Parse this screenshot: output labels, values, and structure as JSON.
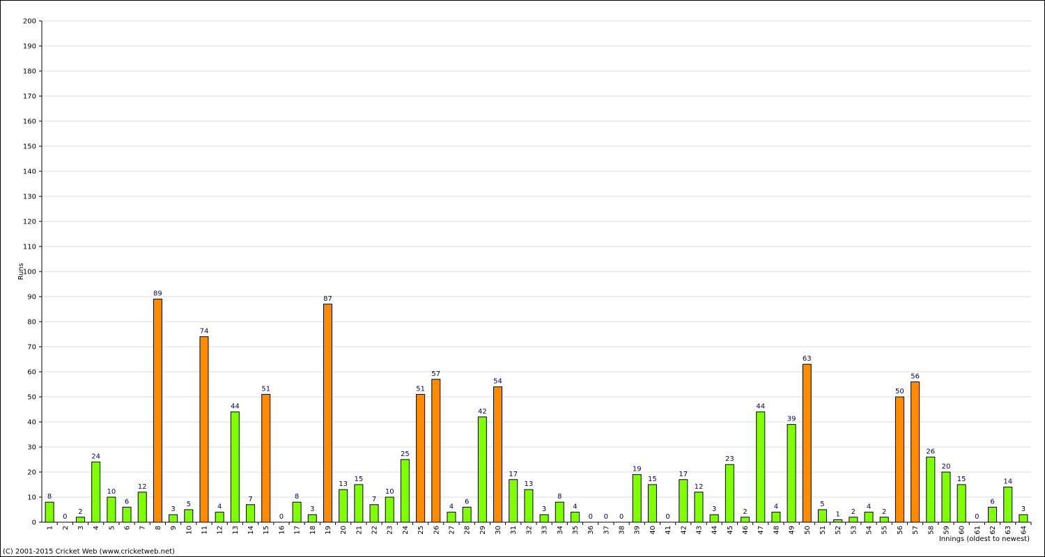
{
  "chart_data": {
    "type": "bar",
    "y_label": "Runs",
    "x_label": "Innings (oldest to newest)",
    "categories": [
      "1",
      "2",
      "3",
      "4",
      "5",
      "6",
      "7",
      "8",
      "9",
      "10",
      "11",
      "12",
      "13",
      "14",
      "15",
      "16",
      "17",
      "18",
      "19",
      "20",
      "21",
      "22",
      "23",
      "24",
      "25",
      "26",
      "27",
      "28",
      "29",
      "30",
      "31",
      "32",
      "33",
      "34",
      "35",
      "36",
      "37",
      "38",
      "39",
      "40",
      "41",
      "42",
      "43",
      "44",
      "45",
      "46",
      "47",
      "48",
      "49",
      "50",
      "51",
      "52",
      "53",
      "54",
      "55",
      "56",
      "57",
      "58",
      "59",
      "60",
      "61",
      "62",
      "63",
      "64"
    ],
    "values": [
      8,
      0,
      2,
      24,
      10,
      6,
      12,
      89,
      3,
      5,
      74,
      4,
      44,
      7,
      51,
      0,
      8,
      3,
      87,
      13,
      15,
      7,
      10,
      25,
      51,
      57,
      4,
      6,
      42,
      54,
      17,
      13,
      3,
      8,
      4,
      0,
      0,
      0,
      19,
      15,
      0,
      17,
      12,
      3,
      23,
      2,
      44,
      4,
      39,
      63,
      5,
      1,
      2,
      4,
      2,
      50,
      56,
      26,
      20,
      15,
      0,
      6,
      14,
      3
    ],
    "colors": [
      "#80ff00",
      "#80ff00",
      "#80ff00",
      "#80ff00",
      "#80ff00",
      "#80ff00",
      "#80ff00",
      "#ff8c00",
      "#80ff00",
      "#80ff00",
      "#ff8c00",
      "#80ff00",
      "#80ff00",
      "#80ff00",
      "#ff8c00",
      "#80ff00",
      "#80ff00",
      "#80ff00",
      "#ff8c00",
      "#80ff00",
      "#80ff00",
      "#80ff00",
      "#80ff00",
      "#80ff00",
      "#ff8c00",
      "#ff8c00",
      "#80ff00",
      "#80ff00",
      "#80ff00",
      "#ff8c00",
      "#80ff00",
      "#80ff00",
      "#80ff00",
      "#80ff00",
      "#80ff00",
      "#80ff00",
      "#80ff00",
      "#80ff00",
      "#80ff00",
      "#80ff00",
      "#80ff00",
      "#80ff00",
      "#80ff00",
      "#80ff00",
      "#80ff00",
      "#80ff00",
      "#80ff00",
      "#80ff00",
      "#80ff00",
      "#ff8c00",
      "#80ff00",
      "#80ff00",
      "#80ff00",
      "#80ff00",
      "#80ff00",
      "#ff8c00",
      "#ff8c00",
      "#80ff00",
      "#80ff00",
      "#80ff00",
      "#80ff00",
      "#80ff00",
      "#80ff00",
      "#80ff00"
    ],
    "ylim": [
      0,
      200
    ],
    "yticks": [
      0,
      10,
      20,
      30,
      40,
      50,
      60,
      70,
      80,
      90,
      100,
      110,
      120,
      130,
      140,
      150,
      160,
      170,
      180,
      190,
      200
    ],
    "grid": true
  },
  "footer": "(C) 2001-2015 Cricket Web (www.cricketweb.net)"
}
